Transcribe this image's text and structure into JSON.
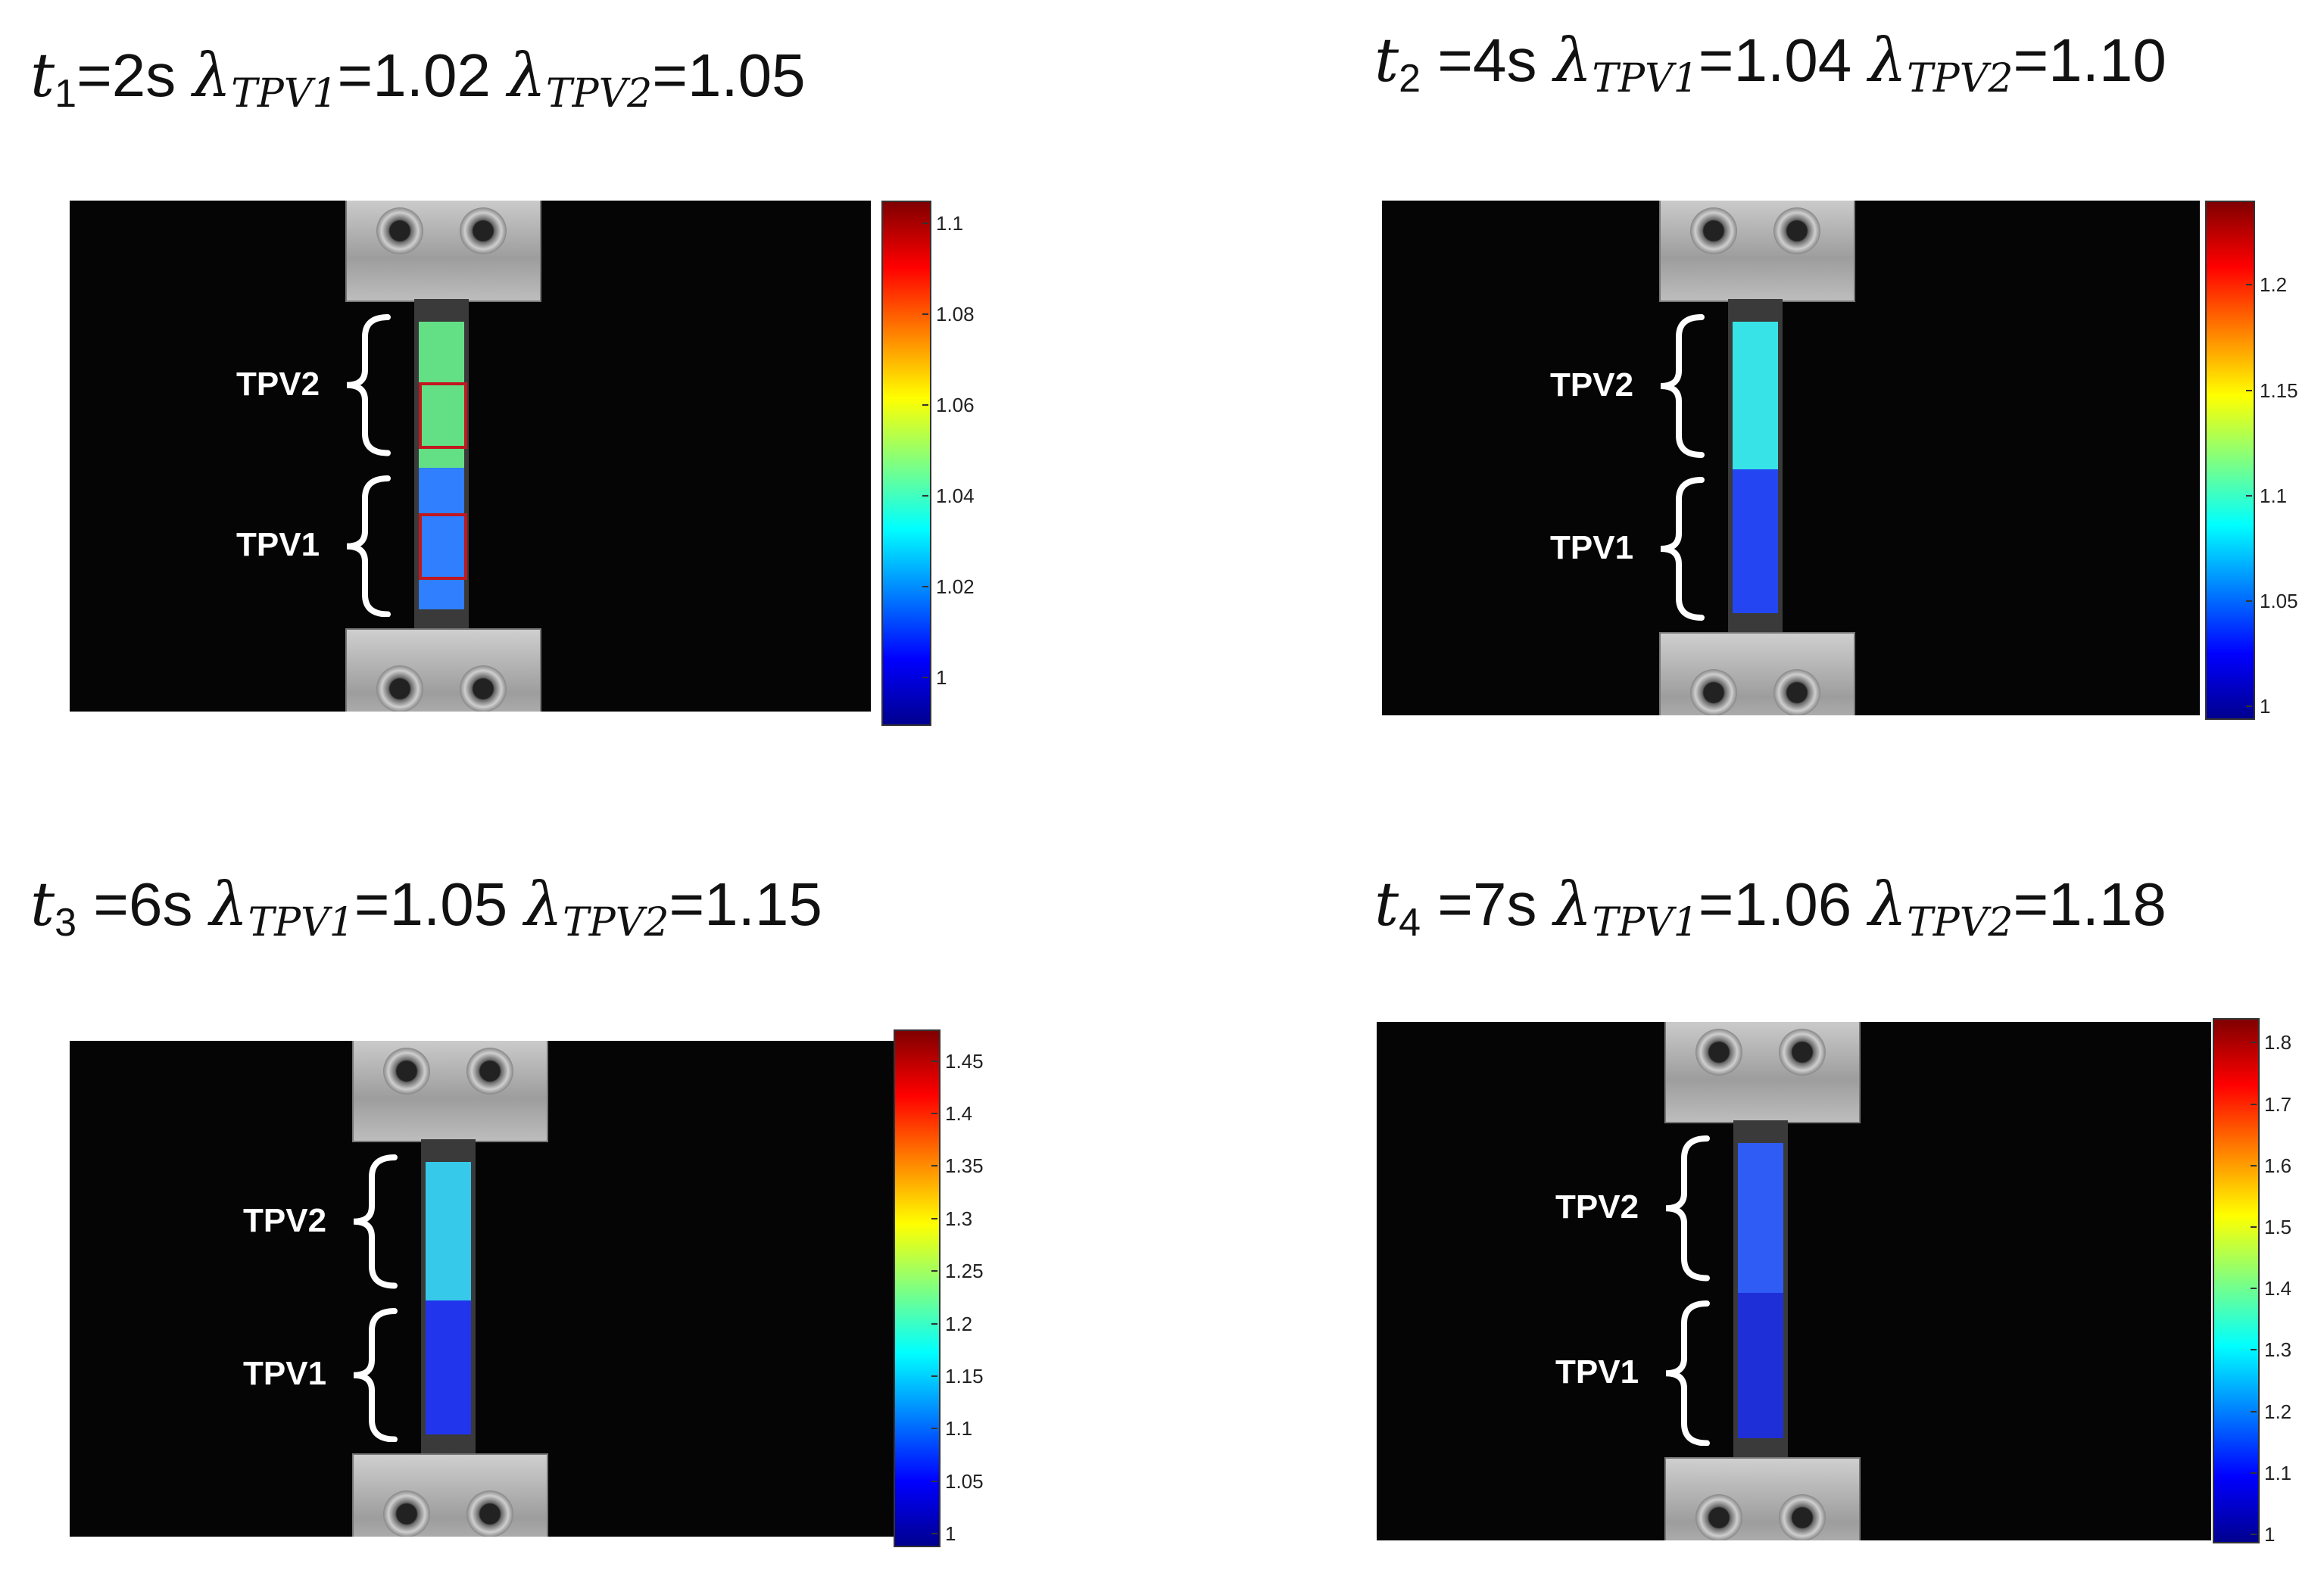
{
  "panels": [
    {
      "time_symbol": "t",
      "time_index": "1",
      "time_value": "=2s",
      "lam1_value": "=1.02",
      "lam2_value": "=1.05",
      "label_upper": "TPV2",
      "label_lower": "TPV1",
      "colorbar_ticks": [
        "1.1",
        "1.08",
        "1.06",
        "1.04",
        "1.02",
        "1"
      ],
      "colorbar_range": [
        0.99,
        1.105
      ],
      "tpv2_color": "#63e086",
      "tpv1_color": "#2f7fff",
      "show_roi": true
    },
    {
      "time_symbol": "t",
      "time_index": "2",
      "time_value": " =4s",
      "lam1_value": "=1.04",
      "lam2_value": "=1.10",
      "label_upper": "TPV2",
      "label_lower": "TPV1",
      "colorbar_ticks": [
        "1.2",
        "1.15",
        "1.1",
        "1.05",
        "1"
      ],
      "colorbar_range": [
        0.995,
        1.24
      ],
      "tpv2_color": "#37e3e6",
      "tpv1_color": "#2346f2",
      "show_roi": false
    },
    {
      "time_symbol": "t",
      "time_index": "3",
      "time_value": " =6s",
      "lam1_value": "=1.05",
      "lam2_value": "=1.15",
      "label_upper": "TPV2",
      "label_lower": "TPV1",
      "colorbar_ticks": [
        "1.45",
        "1.4",
        "1.35",
        "1.3",
        "1.25",
        "1.2",
        "1.15",
        "1.1",
        "1.05",
        "1"
      ],
      "colorbar_range": [
        0.99,
        1.48
      ],
      "tpv2_color": "#36c9ea",
      "tpv1_color": "#2135ec",
      "show_roi": false
    },
    {
      "time_symbol": "t",
      "time_index": "4",
      "time_value": " =7s",
      "lam1_value": "=1.06",
      "lam2_value": "=1.18",
      "label_upper": "TPV2",
      "label_lower": "TPV1",
      "colorbar_ticks": [
        "1.8",
        "1.7",
        "1.6",
        "1.5",
        "1.4",
        "1.3",
        "1.2",
        "1.1",
        "1"
      ],
      "colorbar_range": [
        0.99,
        1.84
      ],
      "tpv2_color": "#2f5cf4",
      "tpv1_color": "#1f2fd8",
      "show_roi": false
    }
  ],
  "lambda_symbol": "λ",
  "lambda_sub1": "TPV1",
  "lambda_sub2": "TPV2",
  "colormap": [
    "#00008f",
    "#0000ff",
    "#0080ff",
    "#00ffff",
    "#80ff80",
    "#ffff00",
    "#ff8000",
    "#ff0000",
    "#800000"
  ]
}
